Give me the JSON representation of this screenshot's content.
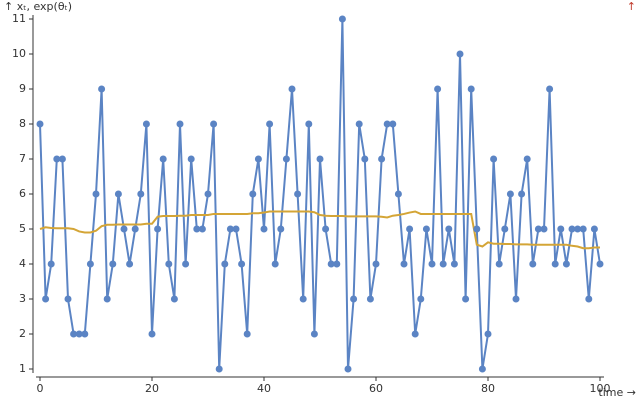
{
  "chart_data": {
    "type": "line",
    "y_label": "↑ xₜ, exp(θₜ)",
    "y2_label": "↑",
    "x_label": "time →",
    "x": [
      0,
      1,
      2,
      3,
      4,
      5,
      6,
      7,
      8,
      9,
      10,
      11,
      12,
      13,
      14,
      15,
      16,
      17,
      18,
      19,
      20,
      21,
      22,
      23,
      24,
      25,
      26,
      27,
      28,
      29,
      30,
      31,
      32,
      33,
      34,
      35,
      36,
      37,
      38,
      39,
      40,
      41,
      42,
      43,
      44,
      45,
      46,
      47,
      48,
      49,
      50,
      51,
      52,
      53,
      54,
      55,
      56,
      57,
      58,
      59,
      60,
      61,
      62,
      63,
      64,
      65,
      66,
      67,
      68,
      69,
      70,
      71,
      72,
      73,
      74,
      75,
      76,
      77,
      78,
      79,
      80,
      81,
      82,
      83,
      84,
      85,
      86,
      87,
      88,
      89,
      90,
      91,
      92,
      93,
      94,
      95,
      96,
      97,
      98,
      99,
      100
    ],
    "series": [
      {
        "color": "#5b84c4",
        "markers": true,
        "values": [
          8,
          3,
          4,
          7,
          7,
          3,
          2,
          2,
          2,
          4,
          6,
          9,
          3,
          4,
          6,
          5,
          4,
          5,
          6,
          8,
          2,
          5,
          7,
          4,
          3,
          8,
          4,
          7,
          5,
          5,
          6,
          8,
          1,
          4,
          5,
          5,
          4,
          2,
          6,
          7,
          5,
          8,
          4,
          5,
          7,
          9,
          6,
          3,
          8,
          2,
          7,
          5,
          4,
          4,
          11,
          1,
          3,
          8,
          7,
          3,
          4,
          7,
          8,
          8,
          6,
          4,
          5,
          2,
          3,
          5,
          4,
          9,
          4,
          5,
          4,
          10,
          3,
          9,
          5,
          1,
          2,
          7,
          4,
          5,
          6,
          3,
          6,
          7,
          4,
          5,
          5,
          9,
          4,
          5,
          4,
          5,
          5,
          5,
          3,
          5,
          4
        ]
      },
      {
        "color": "#d4a536",
        "markers": false,
        "values": [
          5.0,
          5.05,
          5.03,
          5.02,
          5.02,
          5.02,
          5.0,
          4.93,
          4.9,
          4.9,
          4.95,
          5.08,
          5.12,
          5.12,
          5.13,
          5.13,
          5.13,
          5.13,
          5.13,
          5.15,
          5.15,
          5.35,
          5.37,
          5.37,
          5.37,
          5.38,
          5.38,
          5.4,
          5.4,
          5.4,
          5.4,
          5.43,
          5.43,
          5.43,
          5.43,
          5.43,
          5.43,
          5.43,
          5.45,
          5.45,
          5.47,
          5.5,
          5.5,
          5.5,
          5.5,
          5.5,
          5.5,
          5.5,
          5.5,
          5.48,
          5.4,
          5.38,
          5.37,
          5.37,
          5.37,
          5.36,
          5.36,
          5.36,
          5.36,
          5.36,
          5.36,
          5.35,
          5.33,
          5.38,
          5.4,
          5.43,
          5.47,
          5.5,
          5.43,
          5.43,
          5.43,
          5.43,
          5.43,
          5.43,
          5.43,
          5.43,
          5.43,
          5.43,
          4.55,
          4.5,
          4.62,
          4.58,
          4.58,
          4.57,
          4.57,
          4.56,
          4.56,
          4.56,
          4.55,
          4.55,
          4.55,
          4.55,
          4.55,
          4.55,
          4.55,
          4.52,
          4.5,
          4.45,
          4.45,
          4.47,
          4.47
        ]
      }
    ],
    "xlim": [
      0,
      100
    ],
    "xticks": [
      0,
      20,
      40,
      60,
      80,
      100
    ],
    "ylim": [
      1,
      11
    ],
    "yticks": [
      1,
      2,
      3,
      4,
      5,
      6,
      7,
      8,
      9,
      10,
      11
    ],
    "grid": false
  }
}
